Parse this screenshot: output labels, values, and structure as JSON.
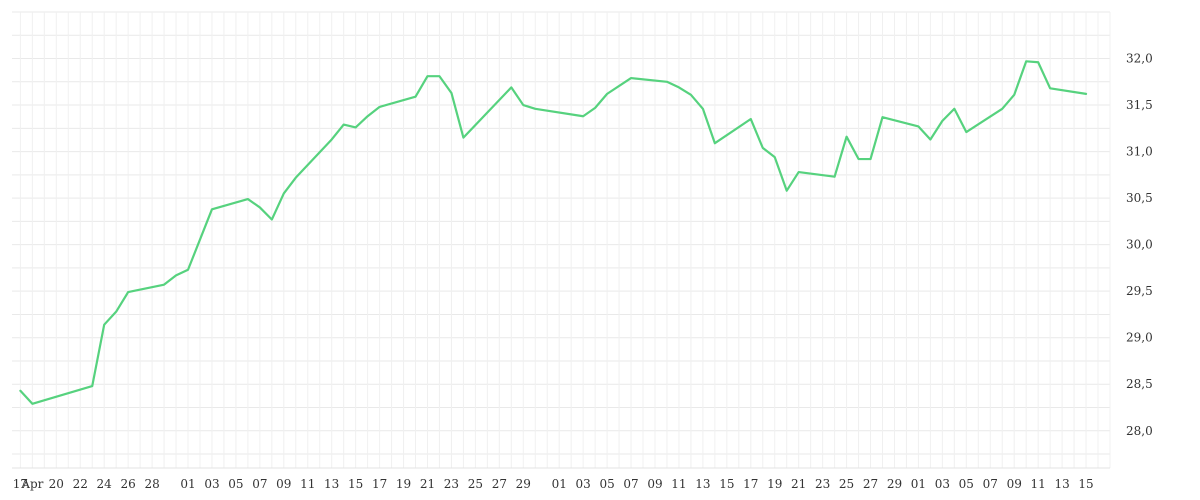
{
  "chart_data": {
    "type": "line",
    "title": "",
    "xlabel": "",
    "ylabel": "",
    "ylim": [
      27.6,
      32.5
    ],
    "y_ticks": [
      "28,0",
      "28,5",
      "29,0",
      "29,5",
      "30,0",
      "30,5",
      "31,0",
      "31,5",
      "32,0"
    ],
    "y_tick_values": [
      28.0,
      28.5,
      29.0,
      29.5,
      30.0,
      30.5,
      31.0,
      31.5,
      32.0
    ],
    "x_ticks": [
      {
        "t": 0,
        "label": "17"
      },
      {
        "t": 1,
        "label": "Apr"
      },
      {
        "t": 3,
        "label": "20"
      },
      {
        "t": 5,
        "label": "22"
      },
      {
        "t": 7,
        "label": "24"
      },
      {
        "t": 9,
        "label": "26"
      },
      {
        "t": 11,
        "label": "28"
      },
      {
        "t": 14,
        "label": "01"
      },
      {
        "t": 16,
        "label": "03"
      },
      {
        "t": 18,
        "label": "05"
      },
      {
        "t": 20,
        "label": "07"
      },
      {
        "t": 22,
        "label": "09"
      },
      {
        "t": 24,
        "label": "11"
      },
      {
        "t": 26,
        "label": "13"
      },
      {
        "t": 28,
        "label": "15"
      },
      {
        "t": 30,
        "label": "17"
      },
      {
        "t": 32,
        "label": "19"
      },
      {
        "t": 34,
        "label": "21"
      },
      {
        "t": 36,
        "label": "23"
      },
      {
        "t": 38,
        "label": "25"
      },
      {
        "t": 40,
        "label": "27"
      },
      {
        "t": 42,
        "label": "29"
      },
      {
        "t": 45,
        "label": "01"
      },
      {
        "t": 47,
        "label": "03"
      },
      {
        "t": 49,
        "label": "05"
      },
      {
        "t": 51,
        "label": "07"
      },
      {
        "t": 53,
        "label": "09"
      },
      {
        "t": 55,
        "label": "11"
      },
      {
        "t": 57,
        "label": "13"
      },
      {
        "t": 59,
        "label": "15"
      },
      {
        "t": 61,
        "label": "17"
      },
      {
        "t": 63,
        "label": "19"
      },
      {
        "t": 65,
        "label": "21"
      },
      {
        "t": 67,
        "label": "23"
      },
      {
        "t": 69,
        "label": "25"
      },
      {
        "t": 71,
        "label": "27"
      },
      {
        "t": 73,
        "label": "29"
      },
      {
        "t": 75,
        "label": "01"
      },
      {
        "t": 77,
        "label": "03"
      },
      {
        "t": 79,
        "label": "05"
      },
      {
        "t": 81,
        "label": "07"
      },
      {
        "t": 83,
        "label": "09"
      },
      {
        "t": 85,
        "label": "11"
      },
      {
        "t": 87,
        "label": "13"
      },
      {
        "t": 89,
        "label": "15"
      }
    ],
    "x_range": [
      -0.7,
      91.0
    ],
    "grid": true,
    "y_axis_position": "right",
    "series": [
      {
        "color": "#56d27e",
        "points": [
          [
            0,
            28.43
          ],
          [
            1,
            28.29
          ],
          [
            6,
            28.48
          ],
          [
            7,
            29.14
          ],
          [
            8,
            29.28
          ],
          [
            9,
            29.49
          ],
          [
            12,
            29.57
          ],
          [
            13,
            29.67
          ],
          [
            14,
            29.73
          ],
          [
            16,
            30.38
          ],
          [
            19,
            30.49
          ],
          [
            20,
            30.4
          ],
          [
            21,
            30.27
          ],
          [
            22,
            30.55
          ],
          [
            23,
            30.72
          ],
          [
            26,
            31.13
          ],
          [
            27,
            31.29
          ],
          [
            28,
            31.26
          ],
          [
            29,
            31.38
          ],
          [
            30,
            31.48
          ],
          [
            33,
            31.59
          ],
          [
            34,
            31.81
          ],
          [
            35,
            31.81
          ],
          [
            36,
            31.63
          ],
          [
            37,
            31.15
          ],
          [
            41,
            31.69
          ],
          [
            42,
            31.5
          ],
          [
            43,
            31.46
          ],
          [
            47,
            31.38
          ],
          [
            48,
            31.47
          ],
          [
            49,
            31.62
          ],
          [
            51,
            31.79
          ],
          [
            54,
            31.75
          ],
          [
            55,
            31.69
          ],
          [
            56,
            31.61
          ],
          [
            57,
            31.46
          ],
          [
            58,
            31.09
          ],
          [
            61,
            31.35
          ],
          [
            62,
            31.04
          ],
          [
            63,
            30.94
          ],
          [
            64,
            30.58
          ],
          [
            65,
            30.78
          ],
          [
            68,
            30.73
          ],
          [
            69,
            31.16
          ],
          [
            70,
            30.92
          ],
          [
            71,
            30.92
          ],
          [
            72,
            31.37
          ],
          [
            75,
            31.27
          ],
          [
            76,
            31.13
          ],
          [
            77,
            31.33
          ],
          [
            78,
            31.46
          ],
          [
            79,
            31.21
          ],
          [
            82,
            31.46
          ],
          [
            83,
            31.61
          ],
          [
            84,
            31.97
          ],
          [
            85,
            31.96
          ],
          [
            86,
            31.68
          ],
          [
            89,
            31.62
          ]
        ]
      }
    ]
  }
}
